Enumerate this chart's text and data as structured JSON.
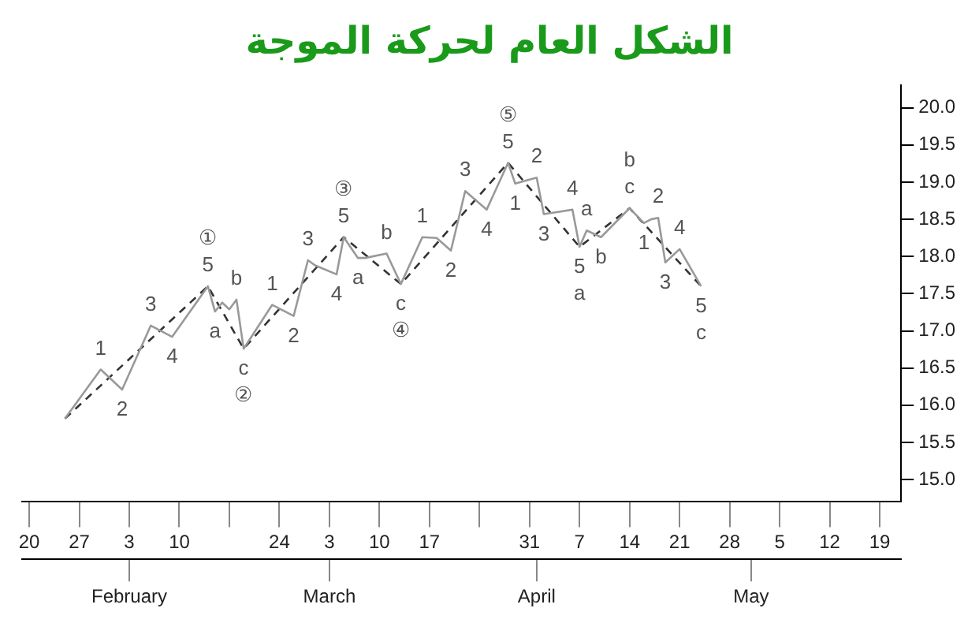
{
  "chart_data": {
    "type": "line",
    "title": "الشكل العام لحركة الموجة",
    "xlim": [
      "--01-19",
      "--05-22"
    ],
    "xticks": [
      {
        "value": "--01-20",
        "label": "20"
      },
      {
        "value": "--01-27",
        "label": "27"
      },
      {
        "value": "--02-03",
        "label": "3"
      },
      {
        "value": "--02-10",
        "label": "10"
      },
      {
        "value": "--02-17",
        "label": null
      },
      {
        "value": "--02-24",
        "label": "24"
      },
      {
        "value": "--03-03",
        "label": "3"
      },
      {
        "value": "--03-10",
        "label": "10"
      },
      {
        "value": "--03-17",
        "label": "17"
      },
      {
        "value": "--03-24",
        "label": null
      },
      {
        "value": "--03-31",
        "label": "31"
      },
      {
        "value": "--04-07",
        "label": "7"
      },
      {
        "value": "--04-14",
        "label": "14"
      },
      {
        "value": "--04-21",
        "label": "21"
      },
      {
        "value": "--04-28",
        "label": "28"
      },
      {
        "value": "--05-05",
        "label": "5"
      },
      {
        "value": "--05-12",
        "label": "12"
      },
      {
        "value": "--05-19",
        "label": "19"
      }
    ],
    "x2lim": [
      "--01-19",
      "--05-22"
    ],
    "x2ticks": [
      {
        "value": "--02-03",
        "label": "February"
      },
      {
        "value": "--03-03",
        "label": "March"
      },
      {
        "value": "--04-01",
        "label": "April"
      },
      {
        "value": "--05-01",
        "label": "May"
      }
    ],
    "ylim": [
      14.7,
      20.3
    ],
    "yticks": [
      {
        "value": 15,
        "label": "15.0"
      },
      {
        "value": 15.5,
        "label": "15.5"
      },
      {
        "value": 16,
        "label": "16.0"
      },
      {
        "value": 16.5,
        "label": "16.5"
      },
      {
        "value": 17,
        "label": "17.0"
      },
      {
        "value": 17.5,
        "label": "17.5"
      },
      {
        "value": 18,
        "label": "18.0"
      },
      {
        "value": 18.5,
        "label": "18.5"
      },
      {
        "value": 19,
        "label": "19.0"
      },
      {
        "value": 19.5,
        "label": "19.5"
      },
      {
        "value": 20,
        "label": "20.0"
      }
    ],
    "marker": "none",
    "series": [
      {
        "color": "#999999",
        "line_style": "solid",
        "x": [
          "--01-25",
          "--01-30",
          "--02-02",
          "--02-06",
          "--02-09",
          "--02-14",
          "--02-15",
          "--02-16",
          "--02-17",
          "--02-18",
          "--02-19",
          "--02-23",
          "--02-26",
          "--02-28",
          "--03-01",
          "--03-04",
          "--03-05",
          "--03-07",
          "--03-08",
          "--03-11",
          "--03-13",
          "--03-16",
          "--03-18",
          "--03-20",
          "--03-22",
          "--03-25",
          "--03-28",
          "--03-29",
          "--04-01",
          "--04-02",
          "--04-04",
          "--04-06",
          "--04-07",
          "--04-08",
          "--04-10",
          "--04-14",
          "--04-16",
          "--04-17",
          "--04-18",
          "--04-19",
          "--04-21",
          "--04-24"
        ],
        "values": [
          15.82,
          16.48,
          16.21,
          17.07,
          16.92,
          17.6,
          17.26,
          17.38,
          17.29,
          17.42,
          16.76,
          17.35,
          17.2,
          17.95,
          17.88,
          17.76,
          18.26,
          17.98,
          17.98,
          18.04,
          17.63,
          18.26,
          18.25,
          18.08,
          18.88,
          18.63,
          19.26,
          18.98,
          19.06,
          18.57,
          18.6,
          18.63,
          18.13,
          18.35,
          18.26,
          18.65,
          18.45,
          18.5,
          18.52,
          17.92,
          18.1,
          17.6
        ]
      },
      {
        "color": "#333333",
        "line_style": "dashed",
        "x": [
          "--01-25",
          "--02-14",
          "--02-19",
          "--03-05",
          "--03-13",
          "--03-28",
          "--04-07",
          "--04-14",
          "--04-24"
        ],
        "values": [
          15.82,
          17.6,
          16.76,
          18.26,
          17.63,
          19.26,
          18.13,
          18.65,
          17.6
        ]
      }
    ],
    "annotations": [
      {
        "text": "1",
        "x": "--01-30",
        "y": 16.48
      },
      {
        "text": "2",
        "x": "--02-02",
        "y": 16.21
      },
      {
        "text": "3",
        "x": "--02-06",
        "y": 17.07
      },
      {
        "text": "4",
        "x": "--02-09",
        "y": 16.92
      },
      {
        "text": "5",
        "x": "--02-14",
        "y": 17.6
      },
      {
        "text": "①",
        "x": "--02-14",
        "y": 17.6
      },
      {
        "text": "a",
        "x": "--02-15",
        "y": 17.26
      },
      {
        "text": "b",
        "x": "--02-18",
        "y": 17.42
      },
      {
        "text": "c",
        "x": "--02-19",
        "y": 16.76
      },
      {
        "text": "②",
        "x": "--02-19",
        "y": 16.76
      },
      {
        "text": "1",
        "x": "--02-23",
        "y": 17.35
      },
      {
        "text": "2",
        "x": "--02-26",
        "y": 17.2
      },
      {
        "text": "3",
        "x": "--02-28",
        "y": 17.95
      },
      {
        "text": "4",
        "x": "--03-04",
        "y": 17.76
      },
      {
        "text": "5",
        "x": "--03-05",
        "y": 18.26
      },
      {
        "text": "③",
        "x": "--03-05",
        "y": 18.26
      },
      {
        "text": "a",
        "x": "--03-07",
        "y": 17.98
      },
      {
        "text": "b",
        "x": "--03-11",
        "y": 18.04
      },
      {
        "text": "c",
        "x": "--03-13",
        "y": 17.63
      },
      {
        "text": "④",
        "x": "--03-13",
        "y": 17.63
      },
      {
        "text": "1",
        "x": "--03-16",
        "y": 18.26
      },
      {
        "text": "2",
        "x": "--03-20",
        "y": 18.08
      },
      {
        "text": "3",
        "x": "--03-22",
        "y": 18.88
      },
      {
        "text": "4",
        "x": "--03-25",
        "y": 18.63
      },
      {
        "text": "5",
        "x": "--03-28",
        "y": 19.26
      },
      {
        "text": "⑤",
        "x": "--03-28",
        "y": 19.26
      },
      {
        "text": "1",
        "x": "--03-29",
        "y": 18.98
      },
      {
        "text": "2",
        "x": "--04-01",
        "y": 19.06
      },
      {
        "text": "3",
        "x": "--04-02",
        "y": 18.57
      },
      {
        "text": "4",
        "x": "--04-06",
        "y": 18.63
      },
      {
        "text": "5",
        "x": "--04-07",
        "y": 18.13
      },
      {
        "text": "a",
        "x": "--04-07",
        "y": 18.13
      },
      {
        "text": "a",
        "x": "--04-08",
        "y": 18.35
      },
      {
        "text": "b",
        "x": "--04-10",
        "y": 18.26
      },
      {
        "text": "c",
        "x": "--04-14",
        "y": 18.65
      },
      {
        "text": "b",
        "x": "--04-14",
        "y": 18.65
      },
      {
        "text": "1",
        "x": "--04-16",
        "y": 18.45
      },
      {
        "text": "2",
        "x": "--04-18",
        "y": 18.52
      },
      {
        "text": "3",
        "x": "--04-19",
        "y": 17.92
      },
      {
        "text": "4",
        "x": "--04-21",
        "y": 18.1
      },
      {
        "text": "5",
        "x": "--04-24",
        "y": 17.6
      },
      {
        "text": "c",
        "x": "--04-24",
        "y": 17.6
      }
    ]
  }
}
